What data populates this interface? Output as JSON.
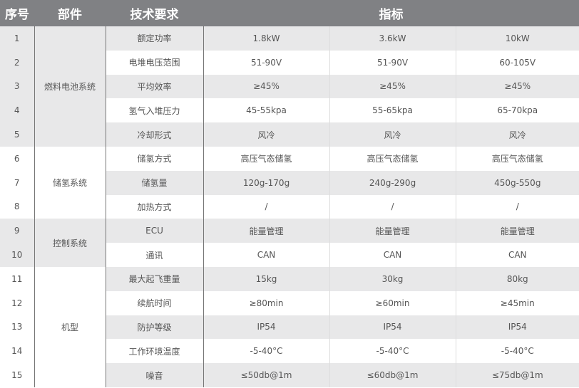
{
  "headers": {
    "index": "序号",
    "component": "部件",
    "requirement": "技术要求",
    "spec": "指标"
  },
  "groups": [
    {
      "name": "燃料电池系统",
      "rows": [
        {
          "no": "1",
          "req": "额定功率",
          "v": [
            "1.8kW",
            "3.6kW",
            "10kW"
          ]
        },
        {
          "no": "2",
          "req": "电堆电压范围",
          "v": [
            "51-90V",
            "51-90V",
            "60-105V"
          ]
        },
        {
          "no": "3",
          "req": "平均效率",
          "v": [
            "≥45%",
            "≥45%",
            "≥45%"
          ]
        },
        {
          "no": "4",
          "req": "氢气入堆压力",
          "v": [
            "45-55kpa",
            "55-65kpa",
            "65-70kpa"
          ]
        },
        {
          "no": "5",
          "req": "冷却形式",
          "v": [
            "风冷",
            "风冷",
            "风冷"
          ]
        }
      ]
    },
    {
      "name": "储氢系统",
      "rows": [
        {
          "no": "6",
          "req": "储氢方式",
          "v": [
            "高压气态储氢",
            "高压气态储氢",
            "高压气态储氢"
          ]
        },
        {
          "no": "7",
          "req": "储氢量",
          "v": [
            "120g-170g",
            "240g-290g",
            "450g-550g"
          ]
        },
        {
          "no": "8",
          "req": "加热方式",
          "v": [
            "/",
            "/",
            "/"
          ]
        }
      ]
    },
    {
      "name": "控制系统",
      "rows": [
        {
          "no": "9",
          "req": "ECU",
          "v": [
            "能量管理",
            "能量管理",
            "能量管理"
          ]
        },
        {
          "no": "10",
          "req": "通讯",
          "v": [
            "CAN",
            "CAN",
            "CAN"
          ]
        }
      ]
    },
    {
      "name": "机型",
      "rows": [
        {
          "no": "11",
          "req": "最大起飞重量",
          "v": [
            "15kg",
            "30kg",
            "80kg"
          ]
        },
        {
          "no": "12",
          "req": "续航时间",
          "v": [
            "≥80min",
            "≥60min",
            "≥45min"
          ]
        },
        {
          "no": "13",
          "req": "防护等级",
          "v": [
            "IP54",
            "IP54",
            "IP54"
          ]
        },
        {
          "no": "14",
          "req": "工作环境温度",
          "v": [
            "-5-40°C",
            "-5-40°C",
            "-5-40°C"
          ]
        },
        {
          "no": "15",
          "req": "噪音",
          "v": [
            "≤50db@1m",
            "≤60db@1m",
            "≤75db@1m"
          ]
        }
      ]
    }
  ]
}
